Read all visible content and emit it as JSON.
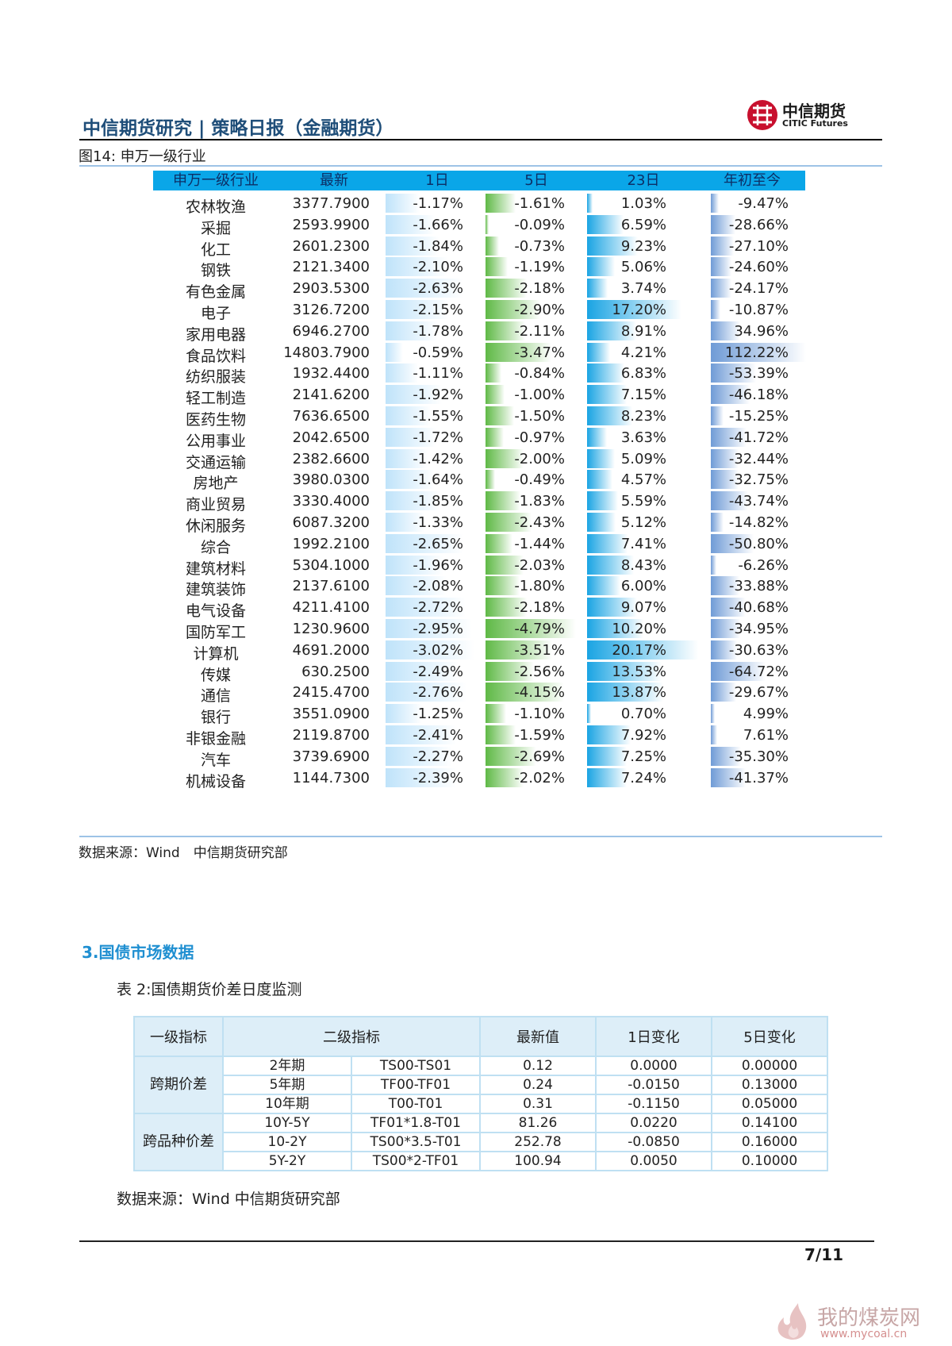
{
  "header": {
    "title": "中信期货研究 | 策略日报（金融期货）",
    "logo_cn": "中信期货",
    "logo_en": "CITIC Futures"
  },
  "figure": {
    "caption": "图14: 申万一级行业",
    "source": "数据来源：Wind　中信期货研究部"
  },
  "industry_table": {
    "headers": [
      "申万一级行业",
      "最新",
      "1日",
      "5日",
      "23日",
      "年初至今"
    ],
    "rows": [
      {
        "name": "农林牧渔",
        "latest": "3377.7900",
        "d1": "-1.17%",
        "d5": "-1.61%",
        "d23": "1.03%",
        "ytd": "-9.47%"
      },
      {
        "name": "采掘",
        "latest": "2593.9900",
        "d1": "-1.66%",
        "d5": "-0.09%",
        "d23": "6.59%",
        "ytd": "-28.66%"
      },
      {
        "name": "化工",
        "latest": "2601.2300",
        "d1": "-1.84%",
        "d5": "-0.73%",
        "d23": "9.23%",
        "ytd": "-27.10%"
      },
      {
        "name": "钢铁",
        "latest": "2121.3400",
        "d1": "-2.10%",
        "d5": "-1.19%",
        "d23": "5.06%",
        "ytd": "-24.60%"
      },
      {
        "name": "有色金属",
        "latest": "2903.5300",
        "d1": "-2.63%",
        "d5": "-2.18%",
        "d23": "3.74%",
        "ytd": "-24.17%"
      },
      {
        "name": "电子",
        "latest": "3126.7200",
        "d1": "-2.15%",
        "d5": "-2.90%",
        "d23": "17.20%",
        "ytd": "-10.87%"
      },
      {
        "name": "家用电器",
        "latest": "6946.2700",
        "d1": "-1.78%",
        "d5": "-2.11%",
        "d23": "8.91%",
        "ytd": "34.96%"
      },
      {
        "name": "食品饮料",
        "latest": "14803.7900",
        "d1": "-0.59%",
        "d5": "-3.47%",
        "d23": "4.21%",
        "ytd": "112.22%"
      },
      {
        "name": "纺织服装",
        "latest": "1932.4400",
        "d1": "-1.11%",
        "d5": "-0.84%",
        "d23": "6.83%",
        "ytd": "-53.39%"
      },
      {
        "name": "轻工制造",
        "latest": "2141.6200",
        "d1": "-1.92%",
        "d5": "-1.00%",
        "d23": "7.15%",
        "ytd": "-46.18%"
      },
      {
        "name": "医药生物",
        "latest": "7636.6500",
        "d1": "-1.55%",
        "d5": "-1.50%",
        "d23": "8.23%",
        "ytd": "-15.25%"
      },
      {
        "name": "公用事业",
        "latest": "2042.6500",
        "d1": "-1.72%",
        "d5": "-0.97%",
        "d23": "3.63%",
        "ytd": "-41.72%"
      },
      {
        "name": "交通运输",
        "latest": "2382.6600",
        "d1": "-1.42%",
        "d5": "-2.00%",
        "d23": "5.09%",
        "ytd": "-32.44%"
      },
      {
        "name": "房地产",
        "latest": "3980.0300",
        "d1": "-1.64%",
        "d5": "-0.49%",
        "d23": "4.57%",
        "ytd": "-32.75%"
      },
      {
        "name": "商业贸易",
        "latest": "3330.4000",
        "d1": "-1.85%",
        "d5": "-1.83%",
        "d23": "5.59%",
        "ytd": "-43.74%"
      },
      {
        "name": "休闲服务",
        "latest": "6087.3200",
        "d1": "-1.33%",
        "d5": "-2.43%",
        "d23": "5.12%",
        "ytd": "-14.82%"
      },
      {
        "name": "综合",
        "latest": "1992.2100",
        "d1": "-2.65%",
        "d5": "-1.44%",
        "d23": "7.41%",
        "ytd": "-50.80%"
      },
      {
        "name": "建筑材料",
        "latest": "5304.1000",
        "d1": "-1.96%",
        "d5": "-2.03%",
        "d23": "8.43%",
        "ytd": "-6.26%"
      },
      {
        "name": "建筑装饰",
        "latest": "2137.6100",
        "d1": "-2.08%",
        "d5": "-1.80%",
        "d23": "6.00%",
        "ytd": "-33.88%"
      },
      {
        "name": "电气设备",
        "latest": "4211.4100",
        "d1": "-2.72%",
        "d5": "-2.18%",
        "d23": "9.07%",
        "ytd": "-40.68%"
      },
      {
        "name": "国防军工",
        "latest": "1230.9600",
        "d1": "-2.95%",
        "d5": "-4.79%",
        "d23": "10.20%",
        "ytd": "-34.95%"
      },
      {
        "name": "计算机",
        "latest": "4691.2000",
        "d1": "-3.02%",
        "d5": "-3.51%",
        "d23": "20.17%",
        "ytd": "-30.63%"
      },
      {
        "name": "传媒",
        "latest": "630.2500",
        "d1": "-2.49%",
        "d5": "-2.56%",
        "d23": "13.53%",
        "ytd": "-64.72%"
      },
      {
        "name": "通信",
        "latest": "2415.4700",
        "d1": "-2.76%",
        "d5": "-4.15%",
        "d23": "13.87%",
        "ytd": "-29.67%"
      },
      {
        "name": "银行",
        "latest": "3551.0900",
        "d1": "-1.25%",
        "d5": "-1.10%",
        "d23": "0.70%",
        "ytd": "4.99%"
      },
      {
        "name": "非银金融",
        "latest": "2119.8700",
        "d1": "-2.41%",
        "d5": "-1.59%",
        "d23": "7.92%",
        "ytd": "7.61%"
      },
      {
        "name": "汽车",
        "latest": "3739.6900",
        "d1": "-2.27%",
        "d5": "-2.69%",
        "d23": "7.25%",
        "ytd": "-35.30%"
      },
      {
        "name": "机械设备",
        "latest": "1144.7300",
        "d1": "-2.39%",
        "d5": "-2.02%",
        "d23": "7.24%",
        "ytd": "-41.37%"
      }
    ]
  },
  "section3": {
    "title": "3.国债市场数据",
    "table_caption": "表 2:国债期货价差日度监测",
    "source": "数据来源：Wind  中信期货研究部"
  },
  "bond_table": {
    "headers": [
      "一级指标",
      "二级指标",
      "最新值",
      "1日变化",
      "5日变化"
    ],
    "groups": [
      {
        "name": "跨期价差",
        "rows": [
          {
            "label": "2年期",
            "contract": "TS00-TS01",
            "latest": "0.12",
            "d1": "0.0000",
            "d5": "0.00000"
          },
          {
            "label": "5年期",
            "contract": "TF00-TF01",
            "latest": "0.24",
            "d1": "-0.0150",
            "d5": "0.13000"
          },
          {
            "label": "10年期",
            "contract": "T00-T01",
            "latest": "0.31",
            "d1": "-0.1150",
            "d5": "0.05000"
          }
        ]
      },
      {
        "name": "跨品种价差",
        "rows": [
          {
            "label": "10Y-5Y",
            "contract": "TF01*1.8-T01",
            "latest": "81.26",
            "d1": "0.0220",
            "d5": "0.14100"
          },
          {
            "label": "10-2Y",
            "contract": "TS00*3.5-T01",
            "latest": "252.78",
            "d1": "-0.0850",
            "d5": "0.16000"
          },
          {
            "label": "5Y-2Y",
            "contract": "TS00*2-TF01",
            "latest": "100.94",
            "d1": "0.0050",
            "d5": "0.10000"
          }
        ]
      }
    ]
  },
  "footer": {
    "page": "7/11",
    "watermark_cn": "我的煤炭网",
    "watermark_url": "www.mycoal.cn"
  },
  "colors": {
    "title": "#1f4e79",
    "header_band": "#0aa6e8",
    "bar_1d": "#bfe3fa",
    "bar_5d": "#5fb946",
    "bar_23d": "#1aa4e3",
    "bar_ytd": "#6f9bd6",
    "section_title": "#1f8fd1"
  }
}
